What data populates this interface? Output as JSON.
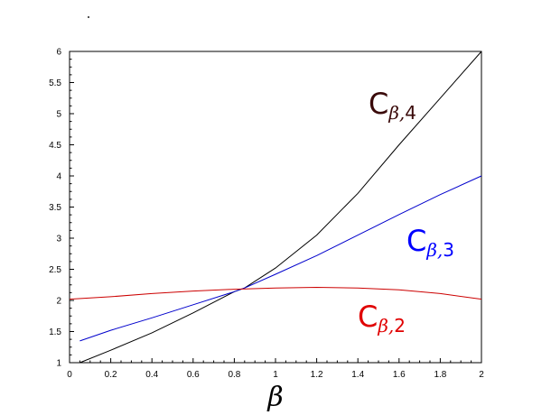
{
  "chart_data": {
    "type": "line",
    "title": "",
    "xlabel": "β",
    "ylabel": "",
    "xlim": [
      0,
      2
    ],
    "ylim": [
      1,
      6
    ],
    "x_ticks": [
      "0",
      "0.2",
      "0.4",
      "0.6",
      "0.8",
      "1",
      "1.2",
      "1.4",
      "1.6",
      "1.8",
      "2"
    ],
    "y_ticks": [
      "1",
      "1.5",
      "2",
      "2.5",
      "3",
      "3.5",
      "4",
      "4.5",
      "5",
      "5.5",
      "6"
    ],
    "grid": false,
    "series": [
      {
        "name": "Cβ,4",
        "label_main": "C",
        "label_sub": "β,4",
        "color": "#000000",
        "label_color": "#3a0a0a",
        "x": [
          0.05,
          0.2,
          0.4,
          0.6,
          0.8,
          0.85,
          1.0,
          1.2,
          1.4,
          1.6,
          1.8,
          2.0
        ],
        "y": [
          1.0,
          1.2,
          1.48,
          1.8,
          2.14,
          2.2,
          2.52,
          3.05,
          3.72,
          4.5,
          5.25,
          6.0
        ]
      },
      {
        "name": "Cβ,3",
        "label_main": "C",
        "label_sub": "β,3",
        "color": "#0000cc",
        "label_color": "#0000ff",
        "x": [
          0.05,
          0.2,
          0.4,
          0.6,
          0.8,
          0.85,
          1.0,
          1.2,
          1.4,
          1.6,
          1.8,
          2.0
        ],
        "y": [
          1.35,
          1.52,
          1.72,
          1.93,
          2.14,
          2.2,
          2.42,
          2.72,
          3.05,
          3.38,
          3.7,
          4.0
        ]
      },
      {
        "name": "Cβ,2",
        "label_main": "C",
        "label_sub": "β,2",
        "color": "#cc0000",
        "label_color": "#e00000",
        "x": [
          0.0,
          0.2,
          0.4,
          0.6,
          0.8,
          1.0,
          1.2,
          1.4,
          1.6,
          1.8,
          2.0
        ],
        "y": [
          2.02,
          2.06,
          2.11,
          2.15,
          2.18,
          2.2,
          2.21,
          2.2,
          2.17,
          2.11,
          2.02
        ]
      }
    ]
  }
}
